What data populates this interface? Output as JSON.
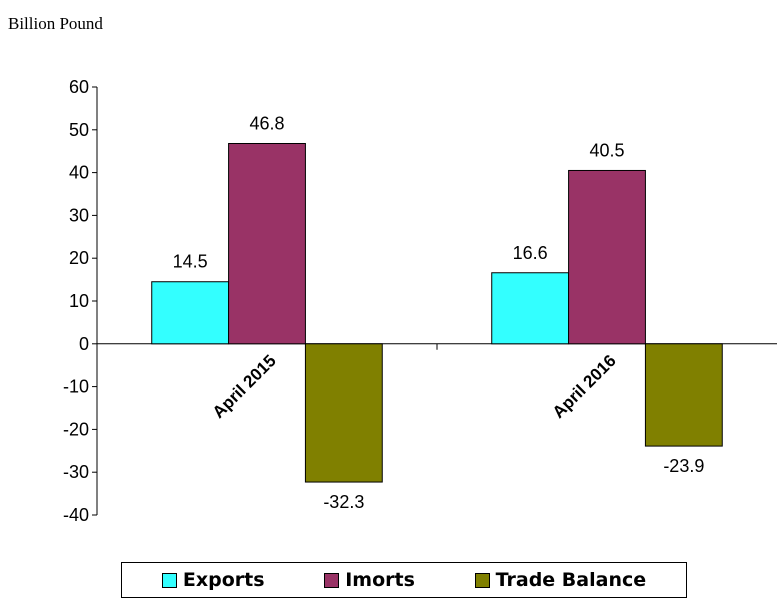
{
  "unit_label": "Billion Pound",
  "colors": {
    "exports": "#33FFFF",
    "imports": "#993366",
    "trade_balance": "#808000"
  },
  "chart_data": {
    "type": "bar",
    "categories": [
      "April 2015",
      "April 2016"
    ],
    "series": [
      {
        "name": "Exports",
        "values": [
          14.5,
          16.6
        ]
      },
      {
        "name": "Imorts",
        "values": [
          46.8,
          40.5
        ]
      },
      {
        "name": "Trade Balance",
        "values": [
          -32.3,
          -23.9
        ]
      }
    ],
    "ylim": [
      -40,
      60
    ],
    "yticks": [
      60,
      50,
      40,
      30,
      20,
      10,
      0,
      -10,
      -20,
      -30,
      -40
    ],
    "grid": false,
    "legend_position": "bottom"
  }
}
